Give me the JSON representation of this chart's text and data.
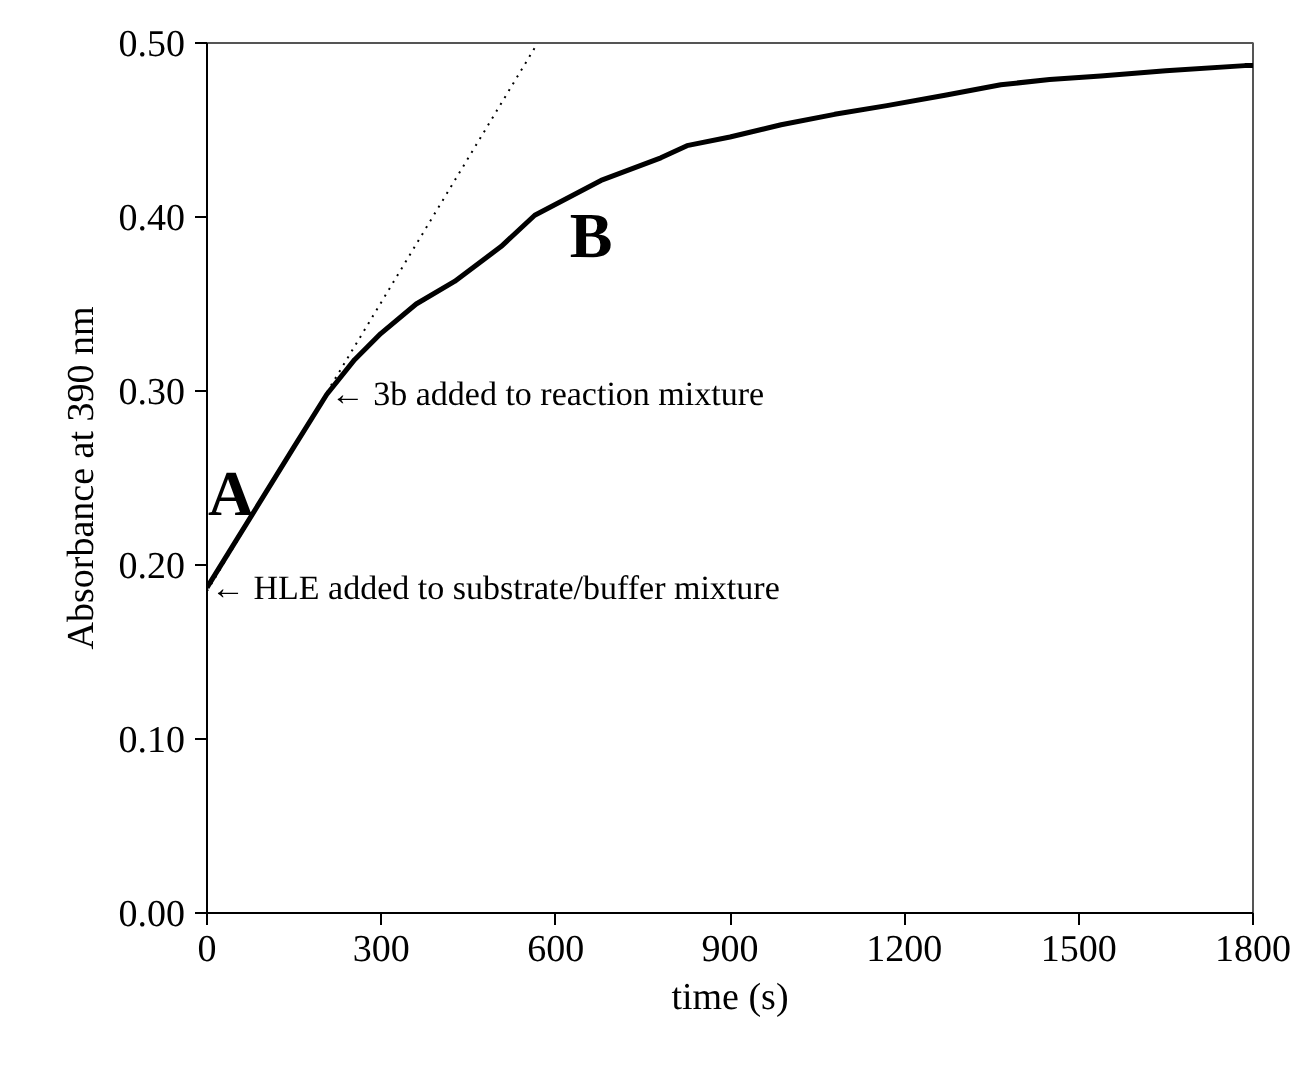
{
  "chart_data": {
    "type": "line",
    "xlabel": "time (s)",
    "ylabel": "Absorbance at 390 nm",
    "xlim": [
      0,
      1800
    ],
    "ylim": [
      0,
      0.5
    ],
    "xticks": [
      0,
      300,
      600,
      900,
      1200,
      1500,
      1800
    ],
    "yticks": [
      {
        "value": 0,
        "label": "0.00"
      },
      {
        "value": 0.1,
        "label": "0.10"
      },
      {
        "value": 0.2,
        "label": "0.20"
      },
      {
        "value": 0.3,
        "label": "0.30"
      },
      {
        "value": 0.4,
        "label": "0.40"
      },
      {
        "value": 0.5,
        "label": "0.50"
      }
    ],
    "grid": false,
    "series": [
      {
        "color": "#000000",
        "line_style": "solid",
        "x": [
          0,
          50,
          100,
          150,
          206,
          254,
          299,
          360,
          426,
          506,
          564,
          678,
          781,
          826,
          900,
          988,
          1080,
          1170,
          1270,
          1366,
          1450,
          1538,
          1650,
          1786,
          1800
        ],
        "values": [
          0.187,
          0.214,
          0.241,
          0.268,
          0.298,
          0.318,
          0.333,
          0.35,
          0.363,
          0.383,
          0.401,
          0.421,
          0.434,
          0.441,
          0.446,
          0.453,
          0.459,
          0.464,
          0.47,
          0.476,
          0.479,
          0.481,
          0.484,
          0.487,
          0.487
        ]
      },
      {
        "color": "#000000",
        "line_style": "dotted",
        "x": [
          0,
          569
        ],
        "values": [
          0.185,
          0.5
        ]
      }
    ],
    "annotations": [
      {
        "text": "← HLE added to substrate/buffer mixture",
        "x": 0,
        "y": 0.187
      },
      {
        "text": "← 3b added to reaction mixture",
        "x": 206,
        "y": 0.298
      },
      "A",
      "B"
    ]
  }
}
